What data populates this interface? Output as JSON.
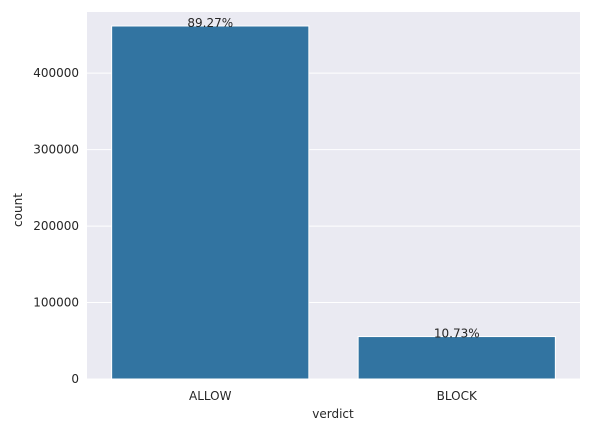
{
  "chart_data": {
    "type": "bar",
    "title": "",
    "xlabel": "verdict",
    "ylabel": "count",
    "categories": [
      "ALLOW",
      "BLOCK"
    ],
    "values": [
      461700,
      55500
    ],
    "data_labels": [
      "89.27%",
      "10.73%"
    ],
    "ylim": [
      0,
      480000
    ],
    "yticks": [
      0,
      100000,
      200000,
      300000,
      400000
    ],
    "ytick_labels": [
      "0",
      "100000",
      "200000",
      "300000",
      "400000"
    ],
    "grid": true,
    "colors": {
      "bar": "#3274a1",
      "plot_background": "#eaeaf2",
      "grid": "#ffffff",
      "text": "#262626"
    }
  }
}
